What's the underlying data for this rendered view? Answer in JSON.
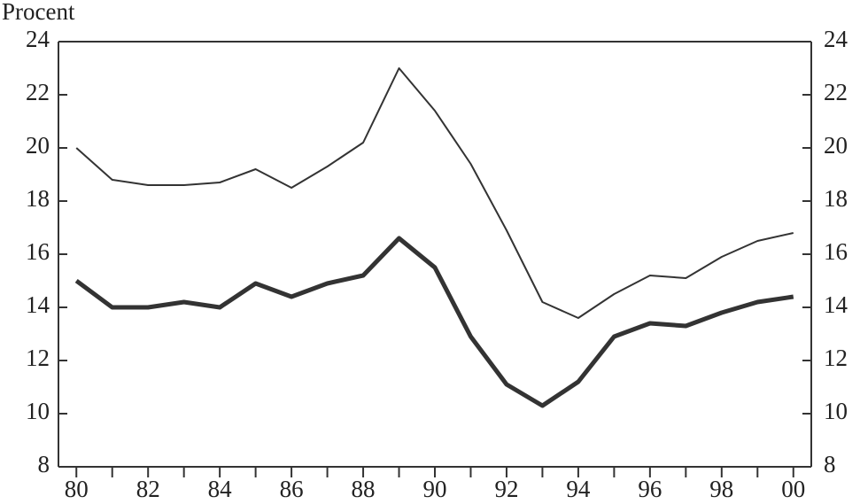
{
  "chart_data": {
    "type": "line",
    "title": "Procent",
    "categories": [
      "80",
      null,
      "82",
      null,
      "84",
      null,
      "86",
      null,
      "88",
      null,
      "90",
      null,
      "92",
      null,
      "94",
      null,
      "96",
      null,
      "98",
      null,
      "00"
    ],
    "series": [
      {
        "color": "#333333",
        "width": 2,
        "values": [
          20.0,
          18.8,
          18.6,
          18.6,
          18.7,
          19.2,
          18.5,
          19.3,
          20.2,
          23.0,
          21.4,
          19.4,
          16.9,
          14.2,
          13.6,
          14.5,
          15.2,
          15.1,
          15.9,
          16.5,
          16.8
        ]
      },
      {
        "color": "#333333",
        "width": 5,
        "values": [
          15.0,
          14.0,
          14.0,
          14.2,
          14.0,
          14.9,
          14.4,
          14.9,
          15.2,
          16.6,
          15.5,
          12.9,
          11.1,
          10.3,
          11.2,
          12.9,
          13.4,
          13.3,
          13.8,
          14.2,
          14.4
        ]
      }
    ],
    "ylim": [
      8,
      24
    ],
    "yticks": [
      8,
      10,
      12,
      14,
      16,
      18,
      20,
      22,
      24
    ],
    "y2lim": [
      8,
      24
    ],
    "y2ticks": [
      8,
      10,
      12,
      14,
      16,
      18,
      20,
      22,
      24
    ]
  }
}
